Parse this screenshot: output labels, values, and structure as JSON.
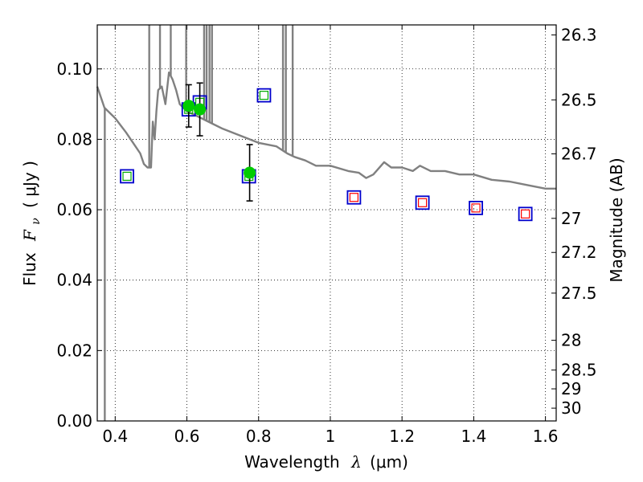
{
  "chart_data": {
    "type": "scatter",
    "xlabel_text": "Wavelength",
    "xlabel_symbol": "λ",
    "xlabel_unit": "(μm)",
    "ylabel_text": "Flux",
    "ylabel_symbol": "F",
    "ylabel_sub": "ν",
    "ylabel_unit": "( μJy )",
    "y2label": "Magnitude (AB)",
    "xlim": [
      0.35,
      1.63
    ],
    "ylim": [
      0.0,
      0.1125
    ],
    "grid": true,
    "x_ticks": [
      {
        "value": 0.4,
        "label": "0.4"
      },
      {
        "value": 0.6,
        "label": "0.6"
      },
      {
        "value": 0.8,
        "label": "0.8"
      },
      {
        "value": 1.0,
        "label": "1"
      },
      {
        "value": 1.2,
        "label": "1.2"
      },
      {
        "value": 1.4,
        "label": "1.4"
      },
      {
        "value": 1.6,
        "label": "1.6"
      }
    ],
    "y_ticks": [
      {
        "value": 0.0,
        "label": "0.00"
      },
      {
        "value": 0.02,
        "label": "0.02"
      },
      {
        "value": 0.04,
        "label": "0.04"
      },
      {
        "value": 0.06,
        "label": "0.06"
      },
      {
        "value": 0.08,
        "label": "0.08"
      },
      {
        "value": 0.1,
        "label": "0.10"
      }
    ],
    "y2_ticks": [
      {
        "mag": 26.3,
        "label": "26.3"
      },
      {
        "mag": 26.5,
        "label": "26.5"
      },
      {
        "mag": 26.7,
        "label": "26.7"
      },
      {
        "mag": 27.0,
        "label": "27"
      },
      {
        "mag": 27.2,
        "label": "27.2"
      },
      {
        "mag": 27.5,
        "label": "27.5"
      },
      {
        "mag": 28.0,
        "label": "28"
      },
      {
        "mag": 28.5,
        "label": "28.5"
      },
      {
        "mag": 29.0,
        "label": "29"
      },
      {
        "mag": 30.0,
        "label": "30"
      }
    ],
    "series": [
      {
        "kind": "line",
        "color": "#808080",
        "points": [
          [
            0.35,
            0.095
          ],
          [
            0.37,
            0.089
          ],
          [
            0.4,
            0.086
          ],
          [
            0.43,
            0.082
          ],
          [
            0.45,
            0.079
          ],
          [
            0.47,
            0.076
          ],
          [
            0.48,
            0.073
          ],
          [
            0.49,
            0.072
          ],
          [
            0.5,
            0.072
          ],
          [
            0.505,
            0.085
          ],
          [
            0.51,
            0.08
          ],
          [
            0.515,
            0.088
          ],
          [
            0.52,
            0.094
          ],
          [
            0.53,
            0.095
          ],
          [
            0.54,
            0.09
          ],
          [
            0.55,
            0.099
          ],
          [
            0.56,
            0.097
          ],
          [
            0.57,
            0.094
          ],
          [
            0.58,
            0.09
          ],
          [
            0.59,
            0.089
          ],
          [
            0.6,
            0.088
          ],
          [
            0.62,
            0.087
          ],
          [
            0.64,
            0.086
          ],
          [
            0.66,
            0.085
          ],
          [
            0.7,
            0.083
          ],
          [
            0.75,
            0.081
          ],
          [
            0.8,
            0.079
          ],
          [
            0.85,
            0.078
          ],
          [
            0.88,
            0.076
          ],
          [
            0.9,
            0.075
          ],
          [
            0.93,
            0.074
          ],
          [
            0.96,
            0.0725
          ],
          [
            1.0,
            0.0725
          ],
          [
            1.05,
            0.071
          ],
          [
            1.08,
            0.0705
          ],
          [
            1.1,
            0.069
          ],
          [
            1.12,
            0.07
          ],
          [
            1.15,
            0.0735
          ],
          [
            1.17,
            0.072
          ],
          [
            1.2,
            0.072
          ],
          [
            1.23,
            0.071
          ],
          [
            1.25,
            0.0725
          ],
          [
            1.28,
            0.071
          ],
          [
            1.32,
            0.071
          ],
          [
            1.36,
            0.07
          ],
          [
            1.4,
            0.07
          ],
          [
            1.45,
            0.0685
          ],
          [
            1.5,
            0.068
          ],
          [
            1.55,
            0.067
          ],
          [
            1.6,
            0.066
          ],
          [
            1.63,
            0.066
          ]
        ],
        "spikes": [
          [
            0.371,
            0.0
          ],
          [
            0.495,
            0.2
          ],
          [
            0.525,
            0.2
          ],
          [
            0.555,
            0.2
          ],
          [
            0.598,
            0.2
          ],
          [
            0.648,
            0.2
          ],
          [
            0.655,
            0.2
          ],
          [
            0.663,
            0.2
          ],
          [
            0.67,
            0.2
          ],
          [
            0.868,
            0.2
          ],
          [
            0.876,
            0.2
          ],
          [
            0.895,
            0.2
          ]
        ]
      },
      {
        "kind": "markers",
        "marker": "square-open",
        "color": "#0000cc",
        "points": [
          [
            0.433,
            0.0695
          ],
          [
            0.605,
            0.0885
          ],
          [
            0.636,
            0.0905
          ],
          [
            0.773,
            0.0695
          ],
          [
            0.815,
            0.0925
          ],
          [
            1.066,
            0.0635
          ],
          [
            1.257,
            0.062
          ],
          [
            1.406,
            0.0605
          ],
          [
            1.544,
            0.0588
          ]
        ]
      },
      {
        "kind": "markers",
        "marker": "square-open-small",
        "color": "#00aa00",
        "points": [
          [
            0.433,
            0.0695
          ],
          [
            0.605,
            0.0885
          ],
          [
            0.636,
            0.0905
          ],
          [
            0.773,
            0.0695
          ],
          [
            0.815,
            0.0925
          ]
        ]
      },
      {
        "kind": "markers",
        "marker": "square-open-small",
        "color": "#ff0000",
        "points": [
          [
            1.066,
            0.0635
          ],
          [
            1.257,
            0.062
          ],
          [
            1.406,
            0.0605
          ],
          [
            1.544,
            0.0588
          ]
        ]
      },
      {
        "kind": "errorbar",
        "marker": "circle-filled",
        "color": "#00cc00",
        "errcolor": "#000000",
        "points": [
          [
            0.605,
            0.0895,
            0.006
          ],
          [
            0.636,
            0.0885,
            0.0075
          ],
          [
            0.775,
            0.0705,
            0.008
          ]
        ]
      }
    ]
  }
}
